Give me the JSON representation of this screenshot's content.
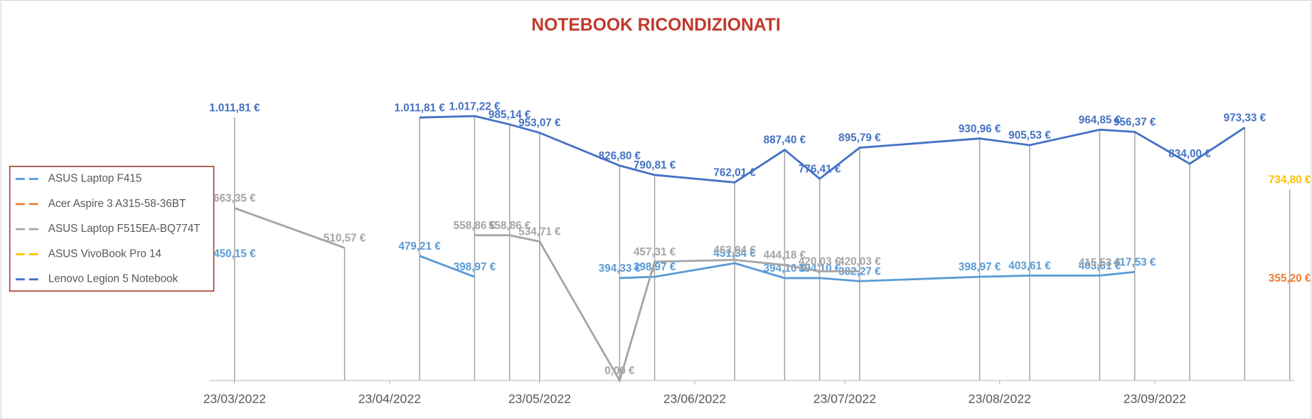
{
  "chart_data": {
    "type": "line",
    "title": "NOTEBOOK RICONDIZIONATI",
    "x": [
      "2022-03-23",
      "2022-04-14",
      "2022-04-29",
      "2022-05-10",
      "2022-05-17",
      "2022-05-23",
      "2022-06-08",
      "2022-06-15",
      "2022-07-01",
      "2022-07-11",
      "2022-07-18",
      "2022-07-26",
      "2022-08-19",
      "2022-08-29",
      "2022-09-12",
      "2022-09-19",
      "2022-09-30",
      "2022-10-11",
      "2022-10-20"
    ],
    "xlim": [
      "2022-03-18",
      "2022-10-21"
    ],
    "xticks": [
      {
        "value": "2022-03-23",
        "label": "23/03/2022"
      },
      {
        "value": "2022-04-23",
        "label": "23/04/2022"
      },
      {
        "value": "2022-05-23",
        "label": "23/05/2022"
      },
      {
        "value": "2022-06-23",
        "label": "23/06/2022"
      },
      {
        "value": "2022-07-23",
        "label": "23/07/2022"
      },
      {
        "value": "2022-08-23",
        "label": "23/08/2022"
      },
      {
        "value": "2022-09-23",
        "label": "23/09/2022"
      }
    ],
    "ylim": [
      0,
      1200
    ],
    "drop_lines": true,
    "legend": "left",
    "series": [
      {
        "name": "ASUS Laptop F415",
        "color": "#5b9bd5",
        "values": [
          450.15,
          null,
          479.21,
          398.97,
          null,
          null,
          394.33,
          398.97,
          451.34,
          394.1,
          394.1,
          382.27,
          398.97,
          403.61,
          403.61,
          417.53,
          null,
          null,
          null
        ],
        "value_labels": [
          "450,15 €",
          null,
          "479,21 €",
          "398,97 €",
          null,
          null,
          "394,33 €",
          "398,97 €",
          "451,34 €",
          "394,10 €",
          "394,10 €",
          "382,27 €",
          "398,97 €",
          "403,61 €",
          "403,61 €",
          "417,53 €",
          null,
          null,
          null
        ]
      },
      {
        "name": "Acer Aspire 3 A315-58-36BT",
        "color": "#ed7d31",
        "values": [
          null,
          null,
          null,
          null,
          null,
          null,
          null,
          null,
          null,
          null,
          null,
          null,
          null,
          null,
          null,
          null,
          null,
          null,
          355.2
        ],
        "value_labels": [
          null,
          null,
          null,
          null,
          null,
          null,
          null,
          null,
          null,
          null,
          null,
          null,
          null,
          null,
          null,
          null,
          null,
          null,
          "355,20 €"
        ]
      },
      {
        "name": "ASUS Laptop F515EA-BQ774T",
        "color": "#a5a5a5",
        "values": [
          663.35,
          510.57,
          null,
          558.86,
          558.86,
          534.71,
          0,
          457.31,
          463.94,
          444.18,
          420.03,
          420.03,
          null,
          null,
          415.53,
          null,
          null,
          null,
          null
        ],
        "value_labels": [
          "663,35 €",
          "510,57 €",
          null,
          "558,86 €",
          "558,86 €",
          "534,71 €",
          "0,00 €",
          "457,31 €",
          "463,94 €",
          "444,18 €",
          "420,03 €",
          "420,03 €",
          null,
          null,
          "415,53 €",
          null,
          null,
          null,
          null
        ]
      },
      {
        "name": "ASUS VivoBook Pro 14",
        "color": "#ffc000",
        "values": [
          null,
          null,
          null,
          null,
          null,
          null,
          null,
          null,
          null,
          null,
          null,
          null,
          null,
          null,
          null,
          null,
          null,
          null,
          734.8
        ],
        "value_labels": [
          null,
          null,
          null,
          null,
          null,
          null,
          null,
          null,
          null,
          null,
          null,
          null,
          null,
          null,
          null,
          null,
          null,
          null,
          "734,80 €"
        ]
      },
      {
        "name": "Lenovo Legion 5 Notebook",
        "color": "#4472c4",
        "values": [
          1011.81,
          null,
          1011.81,
          1017.22,
          985.14,
          953.07,
          826.8,
          790.81,
          762.01,
          887.4,
          776.41,
          895.79,
          930.96,
          905.53,
          964.85,
          956.37,
          834.0,
          973.33,
          null
        ],
        "value_labels": [
          "1.011,81 €",
          null,
          "1.011,81 €",
          "1.017,22 €",
          "985,14 €",
          "953,07 €",
          "826,80 €",
          "790,81 €",
          "762,01 €",
          "887,40 €",
          "776,41 €",
          "895,79 €",
          "930,96 €",
          "905,53 €",
          "964,85 €",
          "956,37 €",
          "834,00 €",
          "973,33 €",
          null
        ]
      }
    ]
  }
}
